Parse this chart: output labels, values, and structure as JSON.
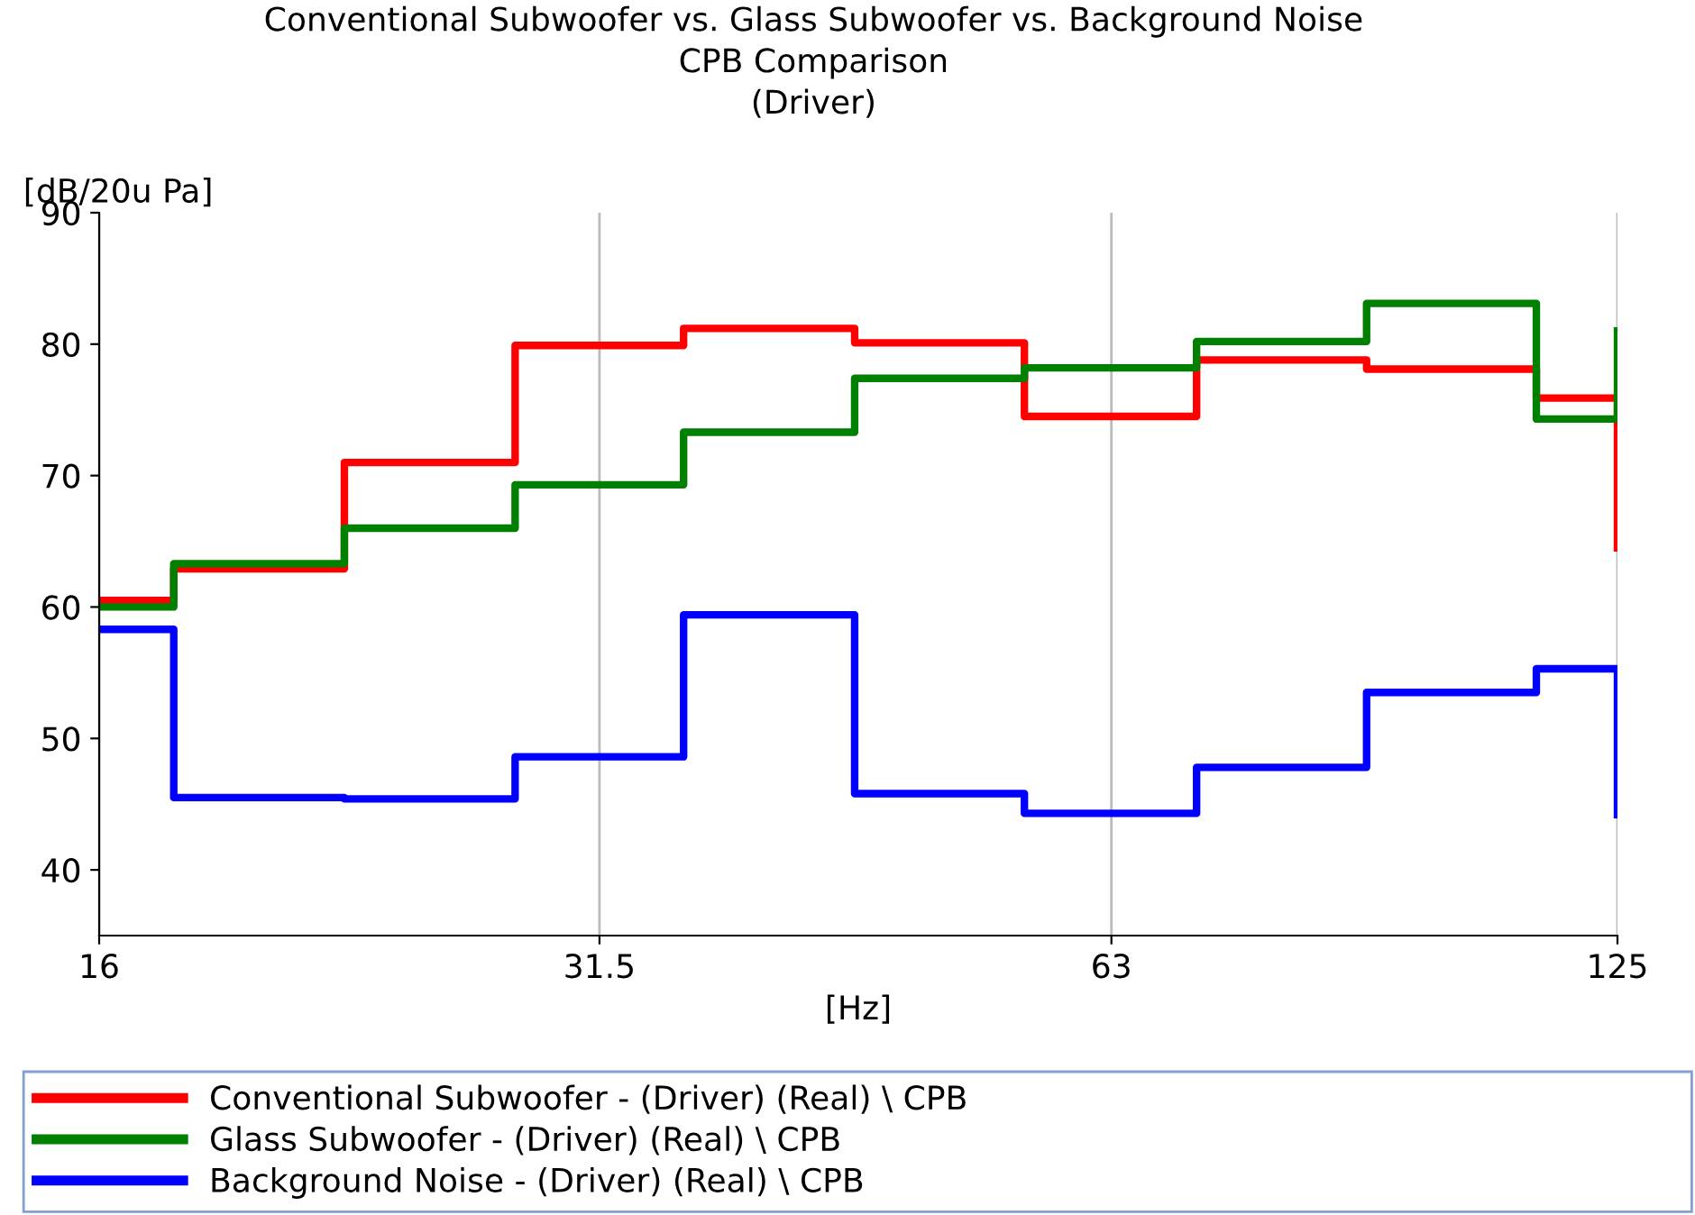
{
  "chart_data": {
    "type": "step",
    "title": "Conventional Subwoofer vs. Glass Subwoofer vs. Background Noise\nCPB Comparison\n(Driver)",
    "xlabel": "[Hz]",
    "ylabel": "[dB/20u Pa]",
    "log": "x",
    "x": [
      16,
      17.7,
      22.3,
      28.1,
      35.3,
      44.5,
      56,
      70.7,
      89,
      112,
      125
    ],
    "series": [
      {
        "name": "Conventional Subwoofer - (Driver) (Real) \\ CPB",
        "color": "#ff0000",
        "values": [
          60.5,
          62.9,
          71,
          79.9,
          81.2,
          80.1,
          74.5,
          78.8,
          78.1,
          75.9,
          64.5
        ]
      },
      {
        "name": "Glass Subwoofer - (Driver) (Real) \\ CPB",
        "color": "#008000",
        "values": [
          60,
          63.3,
          66,
          69.3,
          73.3,
          77.4,
          78.2,
          80.2,
          83.1,
          74.3,
          81
        ]
      },
      {
        "name": "Background Noise - (Driver) (Real) \\ CPB",
        "color": "#0000ff",
        "values": [
          58.3,
          45.5,
          45.4,
          48.6,
          59.4,
          45.8,
          44.3,
          47.8,
          53.5,
          55.3,
          44.2
        ]
      }
    ],
    "xlim": [
      16,
      125
    ],
    "xticks": [
      16,
      31.5,
      63,
      125
    ],
    "ylim": [
      35,
      90
    ],
    "yticks": [
      40,
      50,
      60,
      70,
      80,
      90
    ],
    "grid": "x",
    "legend": "bottom"
  }
}
